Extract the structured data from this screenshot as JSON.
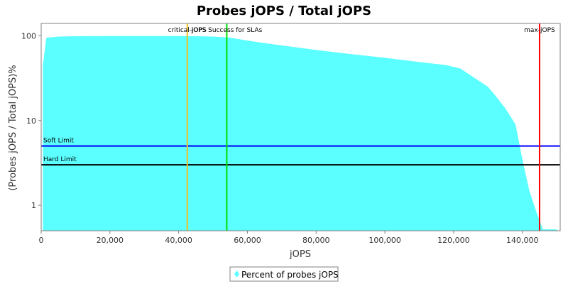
{
  "chart_data": {
    "type": "area",
    "title": "Probes jOPS / Total jOPS",
    "xlabel": "jOPS",
    "ylabel": "(Probes jOPS / Total jOPS)%",
    "x_scale": "linear",
    "y_scale": "log",
    "xlim": [
      0,
      151000
    ],
    "ylim": [
      0.5,
      140
    ],
    "x_ticks": [
      0,
      20000,
      40000,
      60000,
      80000,
      100000,
      120000,
      140000
    ],
    "x_tick_labels": [
      "0",
      "20,000",
      "40,000",
      "60,000",
      "80,000",
      "100,000",
      "120,000",
      "140,000"
    ],
    "y_ticks": [
      1,
      10,
      100
    ],
    "y_tick_labels": [
      "1",
      "10",
      "100"
    ],
    "grid": false,
    "legend_position": "bottom-center",
    "series": [
      {
        "name": "Percent of probes jOPS",
        "color": "#5bffff",
        "x": [
          500,
          1500,
          5000,
          10000,
          20000,
          30000,
          40000,
          45000,
          50000,
          55000,
          60000,
          65000,
          70000,
          80000,
          90000,
          100000,
          110000,
          118000,
          122000,
          125000,
          130000,
          132000,
          135000,
          138000,
          140000,
          142000,
          144000,
          146000,
          148000,
          150000
        ],
        "y": [
          45,
          95,
          98,
          99,
          99.5,
          99.5,
          99.5,
          99,
          98,
          95,
          88,
          82,
          77,
          68,
          61,
          55,
          49,
          45,
          41,
          34,
          25,
          20,
          14,
          9,
          3.5,
          1.5,
          0.85,
          0.52,
          0.52,
          0.52
        ]
      }
    ],
    "vertical_markers": [
      {
        "label": "critical-jOPS",
        "x": 42500,
        "color": "#f0c020"
      },
      {
        "label": "jOPS Success for SLAs",
        "x": 54000,
        "color": "#00dd00"
      },
      {
        "label": "max-jOPS",
        "x": 145000,
        "color": "#ff0000"
      }
    ],
    "horizontal_markers": [
      {
        "label": "Soft Limit",
        "y": 5,
        "color": "#0000ff"
      },
      {
        "label": "Hard Limit",
        "y": 3,
        "color": "#000000"
      }
    ]
  }
}
